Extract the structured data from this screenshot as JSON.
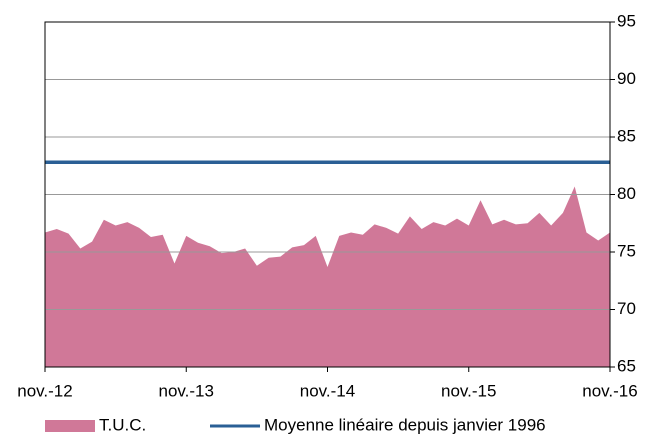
{
  "chart_data": {
    "type": "area",
    "categories": [
      "nov.-12",
      null,
      null,
      null,
      null,
      null,
      null,
      null,
      null,
      null,
      null,
      null,
      "nov.-13",
      null,
      null,
      null,
      null,
      null,
      null,
      null,
      null,
      null,
      null,
      null,
      "nov.-14",
      null,
      null,
      null,
      null,
      null,
      null,
      null,
      null,
      null,
      null,
      null,
      "nov.-15",
      null,
      null,
      null,
      null,
      null,
      null,
      null,
      null,
      null,
      null,
      null,
      "nov.-16"
    ],
    "series": [
      {
        "name": "T.U.C.",
        "type": "area",
        "color": "#d07898",
        "values": [
          76.7,
          77.0,
          76.6,
          75.3,
          75.9,
          77.8,
          77.3,
          77.6,
          77.1,
          76.3,
          76.5,
          74.0,
          76.4,
          75.8,
          75.5,
          74.9,
          75.0,
          75.3,
          73.8,
          74.5,
          74.6,
          75.4,
          75.6,
          76.4,
          73.7,
          76.4,
          76.7,
          76.5,
          77.4,
          77.1,
          76.6,
          78.1,
          77.0,
          77.6,
          77.3,
          77.9,
          77.3,
          79.5,
          77.4,
          77.8,
          77.4,
          77.5,
          78.4,
          77.3,
          78.4,
          80.7,
          76.7,
          76.0,
          76.7
        ]
      },
      {
        "name": "Moyenne linéaire depuis janvier 1996",
        "type": "line",
        "color": "#2a5f95",
        "values": [
          82.8,
          82.8,
          82.8,
          82.8,
          82.8,
          82.8,
          82.8,
          82.8,
          82.8,
          82.8,
          82.8,
          82.8,
          82.8,
          82.8,
          82.8,
          82.8,
          82.8,
          82.8,
          82.8,
          82.8,
          82.8,
          82.8,
          82.8,
          82.8,
          82.8,
          82.8,
          82.8,
          82.8,
          82.8,
          82.8,
          82.8,
          82.8,
          82.8,
          82.8,
          82.8,
          82.8,
          82.8,
          82.8,
          82.8,
          82.8,
          82.8,
          82.8,
          82.8,
          82.8,
          82.8,
          82.8,
          82.8,
          82.8,
          82.8
        ]
      }
    ],
    "ylim": [
      65,
      95
    ],
    "yticks": [
      65,
      70,
      75,
      80,
      85,
      90,
      95
    ],
    "grid": true
  }
}
